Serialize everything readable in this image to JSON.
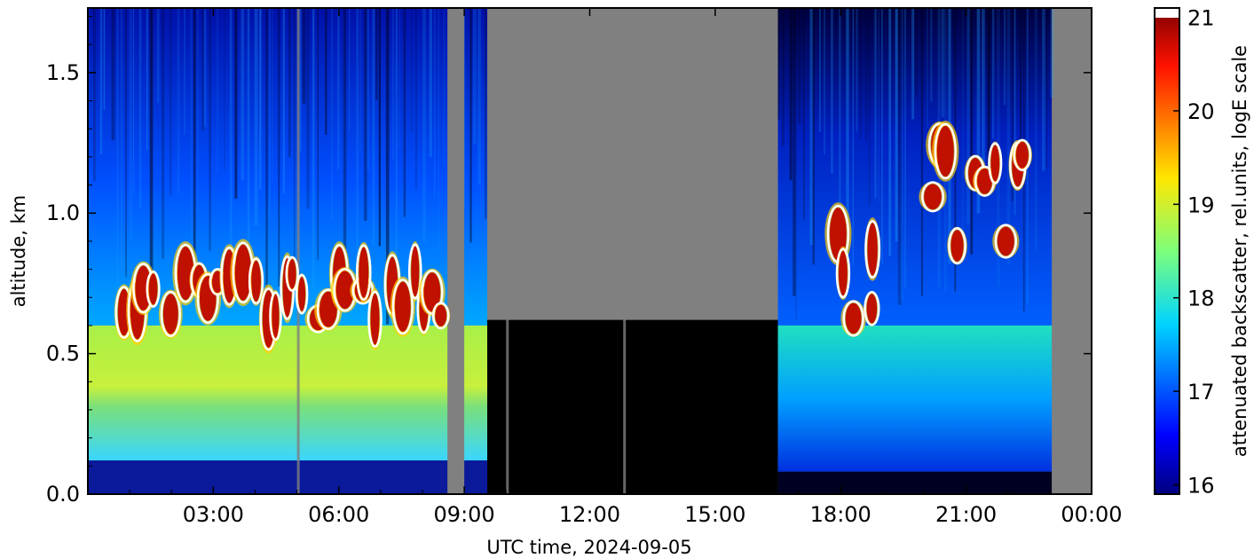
{
  "chart_data": {
    "type": "heatmap",
    "title": "",
    "xlabel": "UTC time,  2024-09-05",
    "ylabel": "altitude, km",
    "colorbar_label": "attenuated backscatter, rel.units, logE scale",
    "x_ticks": [
      {
        "hour": 3,
        "label": "03:00"
      },
      {
        "hour": 6,
        "label": "06:00"
      },
      {
        "hour": 9,
        "label": "09:00"
      },
      {
        "hour": 12,
        "label": "12:00"
      },
      {
        "hour": 15,
        "label": "15:00"
      },
      {
        "hour": 18,
        "label": "18:00"
      },
      {
        "hour": 21,
        "label": "21:00"
      },
      {
        "hour": 24,
        "label": "00:00"
      }
    ],
    "y_ticks": [
      {
        "value": 0.0,
        "label": "0.0"
      },
      {
        "value": 0.5,
        "label": "0.5"
      },
      {
        "value": 1.0,
        "label": "1.0"
      },
      {
        "value": 1.5,
        "label": "1.5"
      }
    ],
    "colorbar_ticks": [
      {
        "value": 16,
        "label": "16"
      },
      {
        "value": 17,
        "label": "17"
      },
      {
        "value": 18,
        "label": "18"
      },
      {
        "value": 19,
        "label": "19"
      },
      {
        "value": 20,
        "label": "20"
      },
      {
        "value": 21,
        "label": "21"
      }
    ],
    "xlim_hours": [
      0,
      24
    ],
    "ylim_km": [
      0,
      1.73
    ],
    "colorbar_range": [
      15.9,
      21.1
    ],
    "colormap": "jet",
    "no_data_color": "#808080",
    "cloud_contour_color": "#ffffff",
    "grid": false,
    "regions": [
      {
        "start_hour": 0.0,
        "end_hour": 8.6,
        "kind": "aerosol",
        "surface_layer_top_km": 0.12,
        "surface_value": 16.3,
        "boundary_layer_top_km": 0.6,
        "boundary_layer_value": 18.4,
        "upper_value": 16.8
      },
      {
        "start_hour": 8.6,
        "end_hour": 9.0,
        "kind": "no_data"
      },
      {
        "start_hour": 9.0,
        "end_hour": 9.55,
        "kind": "aerosol",
        "surface_layer_top_km": 0.12,
        "surface_value": 16.3,
        "boundary_layer_top_km": 0.6,
        "boundary_layer_value": 18.0,
        "upper_value": 16.6
      },
      {
        "start_hour": 9.55,
        "end_hour": 16.5,
        "kind": "signal_attenuated",
        "dark_top_km": 0.62
      },
      {
        "start_hour": 16.5,
        "end_hour": 23.05,
        "kind": "aerosol",
        "surface_layer_top_km": 0.08,
        "surface_value": 16.0,
        "boundary_layer_top_km": 0.6,
        "boundary_layer_value": 17.6,
        "upper_value": 16.2
      },
      {
        "start_hour": 23.05,
        "end_hour": 24.0,
        "kind": "no_data"
      }
    ],
    "cloud_layers": [
      {
        "start_hour": 0.8,
        "end_hour": 8.6,
        "base_km": 0.62,
        "top_km": 0.8
      },
      {
        "start_hour": 17.8,
        "end_hour": 19.0,
        "base_km": 0.6,
        "top_km": 1.0
      },
      {
        "start_hour": 20.0,
        "end_hour": 22.5,
        "base_km": 0.75,
        "top_km": 1.3
      }
    ]
  }
}
